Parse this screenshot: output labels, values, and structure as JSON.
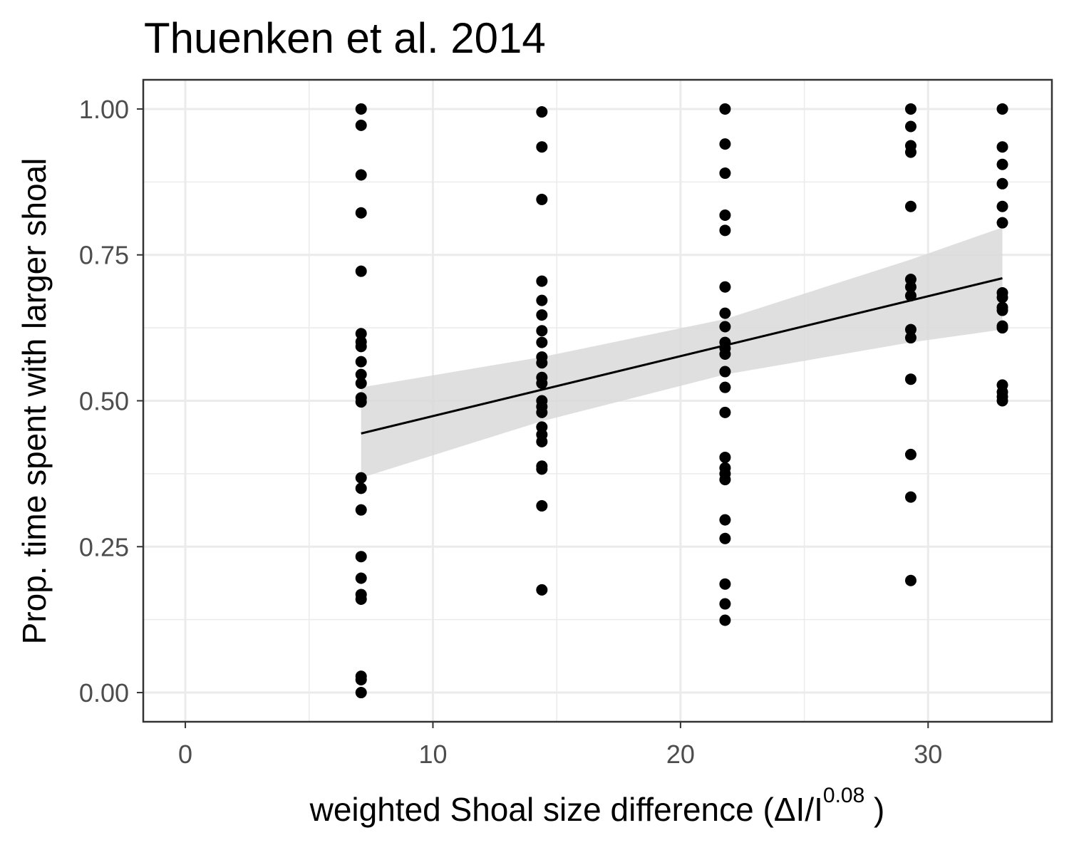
{
  "chart_data": {
    "type": "scatter",
    "title": "Thuenken et al. 2014",
    "xlabel": {
      "prefix": "weighted  Shoal size  difference (ΔI/I",
      "superscript": "0.08",
      "suffix": " )"
    },
    "ylabel": "Prop. time spent with larger shoal",
    "xlim": [
      -1.7,
      35
    ],
    "ylim": [
      -0.05,
      1.05
    ],
    "x_ticks": [
      0,
      10,
      20,
      30
    ],
    "x_tick_labels": [
      "0",
      "10",
      "20",
      "30"
    ],
    "y_ticks": [
      0,
      0.25,
      0.5,
      0.75,
      1.0
    ],
    "y_tick_labels": [
      "0.00",
      "0.25",
      "0.50",
      "0.75",
      "1.00"
    ],
    "grid": true,
    "legend": "none",
    "colors": {
      "points": "#000000",
      "line": "#000000",
      "ribbon": "#d9d9d9",
      "grid": "#ebebeb",
      "panel_border": "#333333"
    },
    "series": [
      {
        "type": "scatter",
        "groups": [
          {
            "x": 7.1,
            "y": [
              1.0,
              0.972,
              0.887,
              0.822,
              0.722,
              0.615,
              0.601,
              0.593,
              0.567,
              0.545,
              0.53,
              0.505,
              0.498,
              0.368,
              0.35,
              0.313,
              0.233,
              0.196,
              0.168,
              0.16,
              0.028,
              0.022,
              0.0
            ]
          },
          {
            "x": 14.4,
            "y": [
              0.995,
              0.935,
              0.845,
              0.705,
              0.672,
              0.647,
              0.62,
              0.6,
              0.575,
              0.565,
              0.54,
              0.53,
              0.5,
              0.49,
              0.48,
              0.455,
              0.442,
              0.43,
              0.388,
              0.383,
              0.32,
              0.176
            ]
          },
          {
            "x": 21.8,
            "y": [
              1.0,
              0.94,
              0.89,
              0.818,
              0.792,
              0.695,
              0.65,
              0.627,
              0.6,
              0.59,
              0.58,
              0.55,
              0.523,
              0.48,
              0.403,
              0.385,
              0.375,
              0.365,
              0.296,
              0.264,
              0.186,
              0.152,
              0.124
            ]
          },
          {
            "x": 29.3,
            "y": [
              1.0,
              0.97,
              0.937,
              0.926,
              0.833,
              0.708,
              0.695,
              0.68,
              0.622,
              0.608,
              0.537,
              0.408,
              0.335,
              0.192
            ]
          },
          {
            "x": 33.0,
            "y": [
              1.0,
              0.935,
              0.905,
              0.872,
              0.833,
              0.805,
              0.685,
              0.677,
              0.66,
              0.655,
              0.628,
              0.625,
              0.527,
              0.515,
              0.507,
              0.5
            ]
          }
        ]
      },
      {
        "type": "line",
        "x": [
          7.1,
          33.0
        ],
        "y": [
          0.444,
          0.71
        ],
        "ribbon": {
          "x": [
            7.1,
            14.4,
            21.8,
            29.3,
            33.0
          ],
          "lower": [
            0.368,
            0.465,
            0.545,
            0.6,
            0.622
          ],
          "upper": [
            0.523,
            0.575,
            0.64,
            0.742,
            0.797
          ]
        }
      }
    ]
  }
}
